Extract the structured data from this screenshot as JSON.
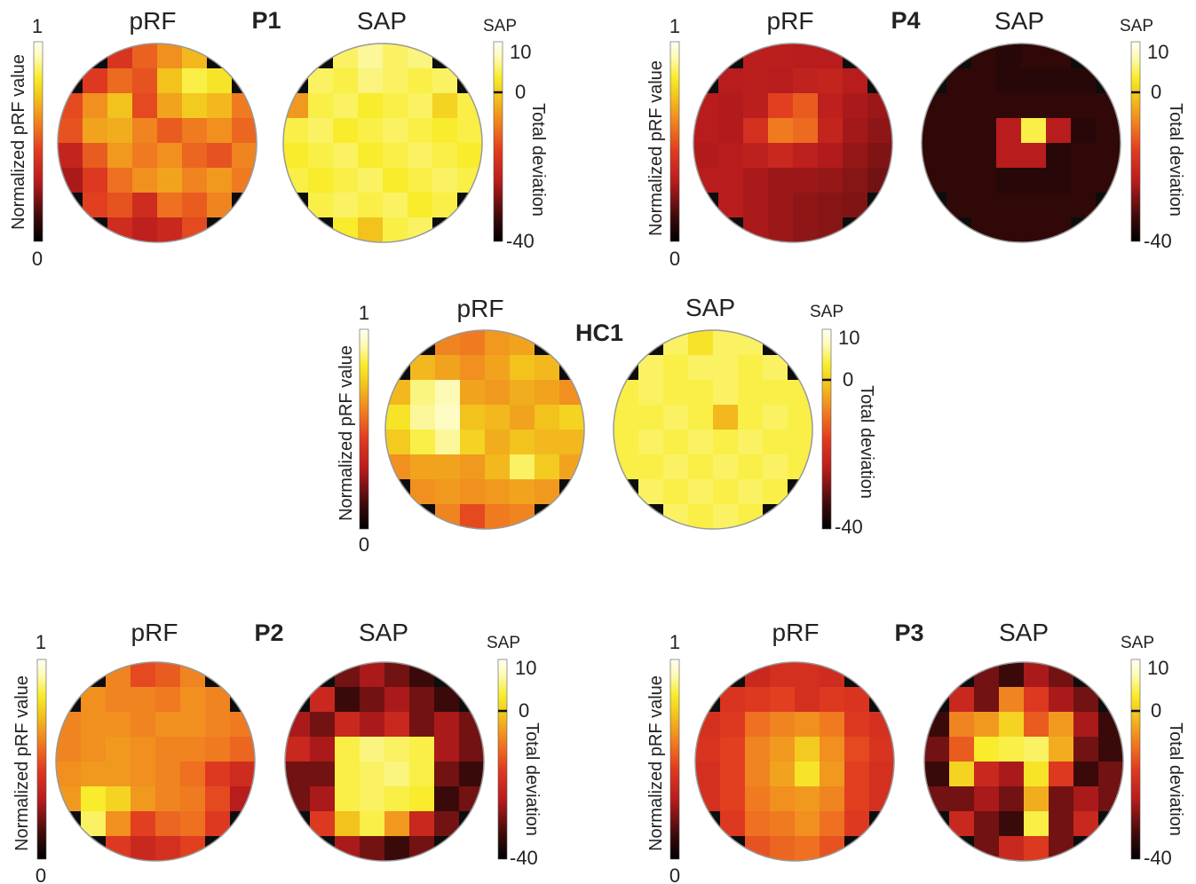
{
  "colors": {
    "colormap": [
      "#000000",
      "#3a0a0a",
      "#b81c1c",
      "#e03a20",
      "#f07a20",
      "#f2c21d",
      "#f8ec2c",
      "#fdfab5",
      "#fffff4"
    ],
    "mask": "#0d0d0d",
    "outline": "#999999"
  },
  "chart_data": [
    {
      "type": "heatmap",
      "panel": "P1",
      "patient_label": "P1",
      "prf_title": "pRF",
      "sap_title": "SAP",
      "prf_colorbar": {
        "label": "Normalized pRF value",
        "min_label": "0",
        "max_label": "1",
        "range": [
          0,
          1
        ]
      },
      "sap_colorbar": {
        "header": "SAP",
        "label": "Total deviation",
        "ticks": [
          "10",
          "0",
          "-40"
        ],
        "range": [
          -40,
          10
        ]
      },
      "prf_grid": [
        [
          0.52,
          0.5,
          0.42,
          0.53,
          0.62,
          0.7,
          0.64,
          0.6
        ],
        [
          0.4,
          0.44,
          0.55,
          0.5,
          0.72,
          0.84,
          0.8,
          0.66
        ],
        [
          0.48,
          0.62,
          0.72,
          0.48,
          0.66,
          0.74,
          0.7,
          0.58
        ],
        [
          0.5,
          0.66,
          0.68,
          0.6,
          0.52,
          0.58,
          0.62,
          0.54
        ],
        [
          0.34,
          0.52,
          0.64,
          0.58,
          0.62,
          0.54,
          0.5,
          0.6
        ],
        [
          0.28,
          0.44,
          0.56,
          0.62,
          0.66,
          0.6,
          0.64,
          0.58
        ],
        [
          0.3,
          0.46,
          0.5,
          0.38,
          0.56,
          0.52,
          0.6,
          0.56
        ],
        [
          0.42,
          0.52,
          0.38,
          0.32,
          0.36,
          0.48,
          0.54,
          0.5
        ]
      ],
      "sap_grid": [
        [
          0,
          2,
          3,
          5,
          3,
          4,
          2,
          1
        ],
        [
          1,
          3,
          2,
          4,
          3,
          2,
          3,
          1
        ],
        [
          -8,
          2,
          3,
          1,
          2,
          3,
          -2,
          2
        ],
        [
          2,
          3,
          1,
          2,
          3,
          2,
          1,
          2
        ],
        [
          1,
          2,
          3,
          1,
          2,
          3,
          2,
          1
        ],
        [
          2,
          1,
          2,
          3,
          1,
          2,
          3,
          2
        ],
        [
          1,
          2,
          3,
          2,
          3,
          1,
          2,
          2
        ],
        [
          2,
          3,
          1,
          -4,
          2,
          3,
          2,
          1
        ]
      ]
    },
    {
      "type": "heatmap",
      "panel": "P4",
      "patient_label": "P4",
      "prf_title": "pRF",
      "sap_title": "SAP",
      "prf_colorbar": {
        "label": "Normalized pRF value",
        "min_label": "0",
        "max_label": "1",
        "range": [
          0,
          1
        ]
      },
      "sap_colorbar": {
        "header": "SAP",
        "label": "Total deviation",
        "ticks": [
          "10",
          "0",
          "-40"
        ],
        "range": [
          -40,
          10
        ]
      },
      "prf_grid": [
        [
          0.3,
          0.3,
          0.31,
          0.31,
          0.3,
          0.3,
          0.3,
          0.29
        ],
        [
          0.3,
          0.3,
          0.31,
          0.3,
          0.33,
          0.34,
          0.3,
          0.28
        ],
        [
          0.3,
          0.29,
          0.31,
          0.46,
          0.52,
          0.32,
          0.28,
          0.26
        ],
        [
          0.3,
          0.29,
          0.4,
          0.58,
          0.55,
          0.34,
          0.27,
          0.24
        ],
        [
          0.29,
          0.3,
          0.32,
          0.36,
          0.32,
          0.29,
          0.25,
          0.22
        ],
        [
          0.3,
          0.3,
          0.28,
          0.26,
          0.26,
          0.25,
          0.23,
          0.2
        ],
        [
          0.3,
          0.3,
          0.28,
          0.26,
          0.24,
          0.23,
          0.22,
          0.2
        ],
        [
          0.3,
          0.3,
          0.28,
          0.26,
          0.24,
          0.23,
          0.22,
          0.2
        ]
      ],
      "sap_grid": [
        [
          -35,
          -35,
          -35,
          -36,
          -35,
          -35,
          -35,
          -35
        ],
        [
          -35,
          -35,
          -35,
          -36,
          -36,
          -36,
          -36,
          -35
        ],
        [
          -35,
          -35,
          -35,
          -35,
          -35,
          -35,
          -35,
          -35
        ],
        [
          -35,
          -35,
          -35,
          -25,
          2,
          -25,
          -36,
          -35
        ],
        [
          -35,
          -35,
          -35,
          -25,
          -25,
          -36,
          -35,
          -35
        ],
        [
          -35,
          -35,
          -35,
          -36,
          -36,
          -36,
          -35,
          -35
        ],
        [
          -35,
          -35,
          -35,
          -35,
          -35,
          -35,
          -35,
          -35
        ],
        [
          -35,
          -35,
          -35,
          -35,
          -35,
          -35,
          -35,
          -35
        ]
      ]
    },
    {
      "type": "heatmap",
      "panel": "HC1",
      "patient_label": "HC1",
      "prf_title": "pRF",
      "sap_title": "SAP",
      "prf_colorbar": {
        "label": "Normalized pRF value",
        "min_label": "0",
        "max_label": "1",
        "range": [
          0,
          1
        ]
      },
      "sap_colorbar": {
        "header": "SAP",
        "label": "Total deviation",
        "ticks": [
          "10",
          "0",
          "-40"
        ],
        "range": [
          -40,
          10
        ]
      },
      "prf_grid": [
        [
          0.6,
          0.62,
          0.6,
          0.58,
          0.64,
          0.66,
          0.62,
          0.6
        ],
        [
          0.62,
          0.7,
          0.66,
          0.62,
          0.66,
          0.72,
          0.7,
          0.62
        ],
        [
          0.7,
          0.88,
          0.92,
          0.66,
          0.64,
          0.68,
          0.66,
          0.62
        ],
        [
          0.8,
          0.9,
          0.94,
          0.72,
          0.7,
          0.66,
          0.72,
          0.76
        ],
        [
          0.74,
          0.84,
          0.9,
          0.76,
          0.68,
          0.72,
          0.7,
          0.7
        ],
        [
          0.62,
          0.66,
          0.66,
          0.64,
          0.7,
          0.86,
          0.74,
          0.66
        ],
        [
          0.6,
          0.62,
          0.64,
          0.62,
          0.64,
          0.66,
          0.64,
          0.62
        ],
        [
          0.6,
          0.58,
          0.6,
          0.48,
          0.58,
          0.6,
          0.6,
          0.6
        ]
      ],
      "sap_grid": [
        [
          2,
          3,
          3,
          0,
          3,
          3,
          2,
          2
        ],
        [
          2,
          3,
          2,
          3,
          3,
          2,
          3,
          2
        ],
        [
          2,
          3,
          2,
          2,
          3,
          2,
          2,
          2
        ],
        [
          2,
          2,
          3,
          2,
          -5,
          2,
          3,
          2
        ],
        [
          2,
          3,
          2,
          3,
          2,
          3,
          2,
          2
        ],
        [
          2,
          2,
          3,
          2,
          3,
          2,
          3,
          2
        ],
        [
          2,
          3,
          2,
          3,
          2,
          3,
          2,
          2
        ],
        [
          2,
          2,
          3,
          2,
          3,
          2,
          2,
          2
        ]
      ]
    },
    {
      "type": "heatmap",
      "panel": "P2",
      "patient_label": "P2",
      "prf_title": "pRF",
      "sap_title": "SAP",
      "prf_colorbar": {
        "label": "Normalized pRF value",
        "min_label": "0",
        "max_label": "1",
        "range": [
          0,
          1
        ]
      },
      "sap_colorbar": {
        "header": "SAP",
        "label": "Total deviation",
        "ticks": [
          "10",
          "0",
          "-40"
        ],
        "range": [
          -40,
          10
        ]
      },
      "prf_grid": [
        [
          0.6,
          0.6,
          0.6,
          0.48,
          0.52,
          0.6,
          0.6,
          0.58
        ],
        [
          0.6,
          0.62,
          0.6,
          0.6,
          0.58,
          0.62,
          0.6,
          0.58
        ],
        [
          0.6,
          0.62,
          0.62,
          0.6,
          0.62,
          0.62,
          0.6,
          0.58
        ],
        [
          0.6,
          0.62,
          0.64,
          0.62,
          0.6,
          0.6,
          0.58,
          0.54
        ],
        [
          0.62,
          0.64,
          0.64,
          0.62,
          0.6,
          0.56,
          0.44,
          0.38
        ],
        [
          0.64,
          0.82,
          0.76,
          0.64,
          0.6,
          0.58,
          0.48,
          0.3
        ],
        [
          0.6,
          0.86,
          0.62,
          0.46,
          0.54,
          0.56,
          0.44,
          0.4
        ],
        [
          0.6,
          0.56,
          0.44,
          0.36,
          0.4,
          0.46,
          0.5,
          0.5
        ]
      ],
      "sap_grid": [
        [
          -30,
          -34,
          -30,
          -26,
          -30,
          -34,
          -22,
          -30
        ],
        [
          -30,
          -22,
          -34,
          -30,
          -26,
          -30,
          -34,
          -26
        ],
        [
          -26,
          -30,
          -22,
          -26,
          -22,
          -30,
          -26,
          -30
        ],
        [
          -22,
          -26,
          2,
          4,
          3,
          2,
          -26,
          -30
        ],
        [
          -30,
          -30,
          2,
          3,
          4,
          2,
          -30,
          -34
        ],
        [
          -30,
          -26,
          2,
          3,
          2,
          1,
          -34,
          -30
        ],
        [
          -30,
          -18,
          -4,
          2,
          -8,
          -22,
          -30,
          -26
        ],
        [
          -26,
          -22,
          -26,
          -30,
          -34,
          -30,
          -26,
          -30
        ]
      ]
    },
    {
      "type": "heatmap",
      "panel": "P3",
      "patient_label": "P3",
      "prf_title": "pRF",
      "sap_title": "SAP",
      "prf_colorbar": {
        "label": "Normalized pRF value",
        "min_label": "0",
        "max_label": "1",
        "range": [
          0,
          1
        ]
      },
      "sap_colorbar": {
        "header": "SAP",
        "label": "Total deviation",
        "ticks": [
          "10",
          "0",
          "-40"
        ],
        "range": [
          -40,
          10
        ]
      },
      "prf_grid": [
        [
          0.4,
          0.4,
          0.36,
          0.4,
          0.4,
          0.38,
          0.4,
          0.4
        ],
        [
          0.4,
          0.42,
          0.44,
          0.46,
          0.4,
          0.44,
          0.42,
          0.4
        ],
        [
          0.4,
          0.44,
          0.56,
          0.6,
          0.62,
          0.58,
          0.44,
          0.4
        ],
        [
          0.42,
          0.46,
          0.6,
          0.64,
          0.74,
          0.62,
          0.48,
          0.42
        ],
        [
          0.4,
          0.46,
          0.6,
          0.66,
          0.8,
          0.64,
          0.46,
          0.4
        ],
        [
          0.4,
          0.46,
          0.58,
          0.62,
          0.64,
          0.6,
          0.46,
          0.4
        ],
        [
          0.4,
          0.44,
          0.56,
          0.58,
          0.62,
          0.56,
          0.44,
          0.4
        ],
        [
          0.4,
          0.42,
          0.5,
          0.54,
          0.56,
          0.5,
          0.42,
          0.4
        ]
      ],
      "sap_grid": [
        [
          -30,
          -34,
          -30,
          -34,
          -26,
          -30,
          -34,
          -30
        ],
        [
          -30,
          -22,
          -30,
          -10,
          -18,
          -26,
          -30,
          -34
        ],
        [
          -34,
          -10,
          -8,
          -2,
          -14,
          -8,
          -26,
          -34
        ],
        [
          -30,
          -14,
          1,
          2,
          3,
          -6,
          -30,
          -34
        ],
        [
          -34,
          -2,
          -22,
          -26,
          0,
          -18,
          -34,
          -30
        ],
        [
          -30,
          -30,
          -26,
          -30,
          -6,
          -30,
          -26,
          -30
        ],
        [
          -34,
          -22,
          -30,
          -34,
          2,
          -30,
          -22,
          -34
        ],
        [
          -30,
          -34,
          -30,
          -22,
          -18,
          -30,
          -34,
          -30
        ]
      ]
    }
  ]
}
